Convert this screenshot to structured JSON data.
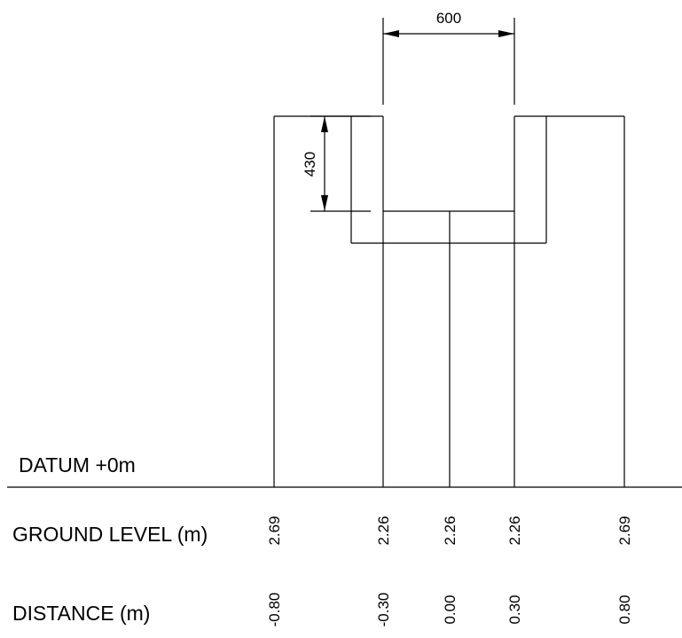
{
  "dimensions": {
    "width_label": "600",
    "depth_label": "430"
  },
  "datum": {
    "label": "DATUM +0m"
  },
  "ground_level": {
    "label": "GROUND LEVEL (m)",
    "values": [
      "2.69",
      "2.26",
      "2.26",
      "2.26",
      "2.69"
    ]
  },
  "distance": {
    "label": "DISTANCE (m)",
    "values": [
      "-0.80",
      "-0.30",
      "0.00",
      "0.30",
      "0.80"
    ]
  }
}
